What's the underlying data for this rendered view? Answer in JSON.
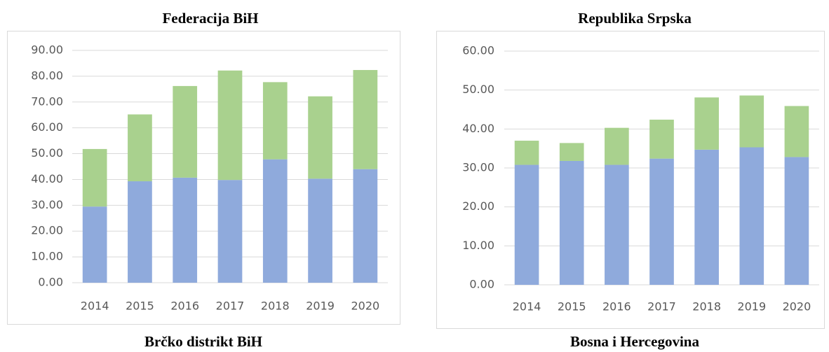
{
  "chart_data": [
    {
      "type": "stacked_bar",
      "title": "Federacija BiH",
      "categories": [
        "2014",
        "2015",
        "2016",
        "2017",
        "2018",
        "2019",
        "2020"
      ],
      "series": [
        {
          "color": "#8faadc",
          "values": [
            29.5,
            39.3,
            40.7,
            39.8,
            47.8,
            40.3,
            44.0
          ]
        },
        {
          "color": "#a9d18e",
          "values": [
            22.3,
            25.9,
            35.5,
            42.4,
            29.9,
            31.9,
            38.4
          ]
        }
      ],
      "ylim": [
        0,
        90
      ],
      "yticks": [
        {
          "value": 0,
          "label": "0.00"
        },
        {
          "value": 10,
          "label": "10.00"
        },
        {
          "value": 20,
          "label": "20.00"
        },
        {
          "value": 30,
          "label": "30.00"
        },
        {
          "value": 40,
          "label": "40.00"
        },
        {
          "value": 50,
          "label": "50.00"
        },
        {
          "value": 60,
          "label": "60.00"
        },
        {
          "value": 70,
          "label": "70.00"
        },
        {
          "value": 80,
          "label": "80.00"
        },
        {
          "value": 90,
          "label": "90.00"
        }
      ],
      "grid": true
    },
    {
      "type": "stacked_bar",
      "title": "Republika Srpska",
      "categories": [
        "2014",
        "2015",
        "2016",
        "2017",
        "2018",
        "2019",
        "2020"
      ],
      "series": [
        {
          "color": "#8faadc",
          "values": [
            30.8,
            31.8,
            30.8,
            32.4,
            34.7,
            35.3,
            32.8
          ]
        },
        {
          "color": "#a9d18e",
          "values": [
            6.2,
            4.6,
            9.5,
            10.0,
            13.4,
            13.3,
            13.1
          ]
        }
      ],
      "ylim": [
        0,
        60
      ],
      "yticks": [
        {
          "value": 0,
          "label": "0.00"
        },
        {
          "value": 10,
          "label": "10.00"
        },
        {
          "value": 20,
          "label": "20.00"
        },
        {
          "value": 30,
          "label": "30.00"
        },
        {
          "value": 40,
          "label": "40.00"
        },
        {
          "value": 50,
          "label": "50.00"
        },
        {
          "value": 60,
          "label": "60.00"
        }
      ],
      "grid": true
    }
  ],
  "next_titles": [
    "Brčko distrikt BiH",
    "Bosna i Hercegovina"
  ]
}
